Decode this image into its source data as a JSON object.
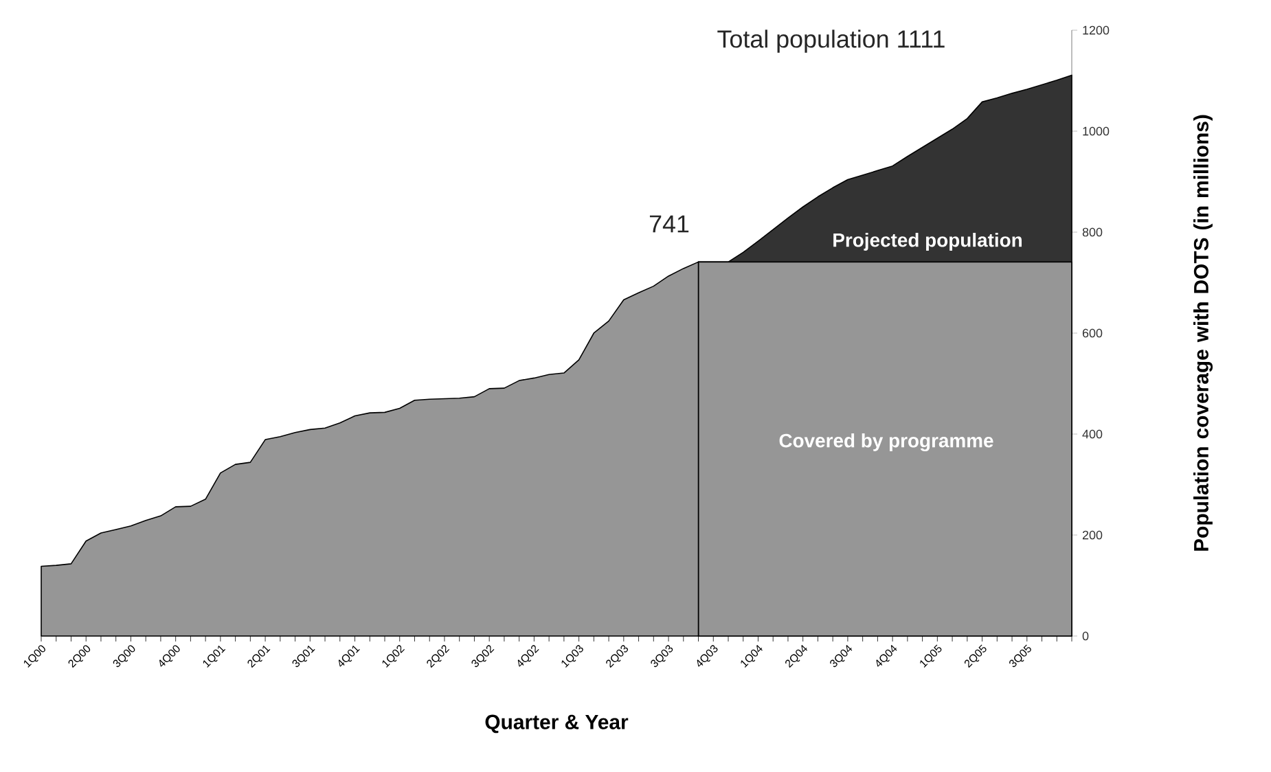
{
  "chart_data": {
    "type": "area",
    "xlabel": "Quarter & Year",
    "ylabel": "Population coverage with DOTS (in millions)",
    "categories": [
      "1Q00",
      null,
      null,
      "2Q00",
      null,
      null,
      "3Q00",
      null,
      null,
      "4Q00",
      null,
      null,
      "1Q01",
      null,
      null,
      "2Q01",
      null,
      null,
      "3Q01",
      null,
      null,
      "4Q01",
      null,
      null,
      "1Q02",
      null,
      null,
      "2Q02",
      null,
      null,
      "3Q02",
      null,
      null,
      "4Q02",
      null,
      null,
      "1Q03",
      null,
      null,
      "2Q03",
      null,
      null,
      "3Q03",
      null,
      null,
      "4Q03",
      null,
      null,
      "1Q04",
      null,
      null,
      "2Q04",
      null,
      null,
      "3Q04",
      null,
      null,
      "4Q04",
      null,
      null,
      "1Q05",
      null,
      null,
      "2Q05",
      null,
      null,
      "3Q05",
      null,
      null,
      null
    ],
    "series": [
      {
        "name": "Projected population",
        "color": "#333333",
        "values": [
          null,
          null,
          null,
          null,
          null,
          null,
          null,
          null,
          null,
          null,
          null,
          null,
          null,
          null,
          null,
          null,
          null,
          null,
          null,
          null,
          null,
          null,
          null,
          null,
          null,
          null,
          null,
          null,
          null,
          null,
          null,
          null,
          null,
          null,
          null,
          null,
          null,
          null,
          null,
          null,
          null,
          null,
          null,
          null,
          741,
          741,
          741,
          760,
          782,
          805,
          828,
          850,
          870,
          888,
          904,
          913,
          922,
          931,
          950,
          968,
          986,
          1004,
          1025,
          1058,
          1066,
          1075,
          1083,
          1092,
          1101,
          1111
        ]
      },
      {
        "name": "Covered by programme",
        "color": "#969696",
        "values": [
          null,
          null,
          null,
          null,
          null,
          null,
          null,
          null,
          null,
          null,
          null,
          null,
          null,
          null,
          null,
          null,
          null,
          null,
          null,
          null,
          null,
          null,
          null,
          null,
          null,
          null,
          null,
          null,
          null,
          null,
          null,
          null,
          null,
          null,
          null,
          null,
          null,
          null,
          null,
          null,
          null,
          null,
          null,
          null,
          741,
          741,
          741,
          741,
          741,
          741,
          741,
          741,
          741,
          741,
          741,
          741,
          741,
          741,
          741,
          741,
          741,
          741,
          741,
          741,
          741,
          741,
          741,
          741,
          741,
          741
        ]
      },
      {
        "color": "#969696",
        "values": [
          138,
          140,
          143,
          188,
          204,
          211,
          218,
          229,
          238,
          256,
          257,
          271,
          323,
          340,
          344,
          389,
          395,
          403,
          409,
          412,
          422,
          436,
          442,
          443,
          451,
          467,
          469,
          470,
          471,
          474,
          490,
          491,
          506,
          511,
          518,
          521,
          547,
          600,
          624,
          666,
          680,
          693,
          713,
          728,
          741,
          null,
          null,
          null,
          null,
          null,
          null,
          null,
          null,
          null,
          null,
          null,
          null,
          null,
          null,
          null,
          null,
          null,
          null,
          null,
          null,
          null,
          null,
          null,
          null,
          null
        ]
      }
    ],
    "ylim": [
      0,
      1200
    ],
    "yticks": [
      0,
      200,
      400,
      600,
      800,
      1000,
      1200
    ],
    "annotations": [
      "741",
      "Total population 1111"
    ]
  }
}
